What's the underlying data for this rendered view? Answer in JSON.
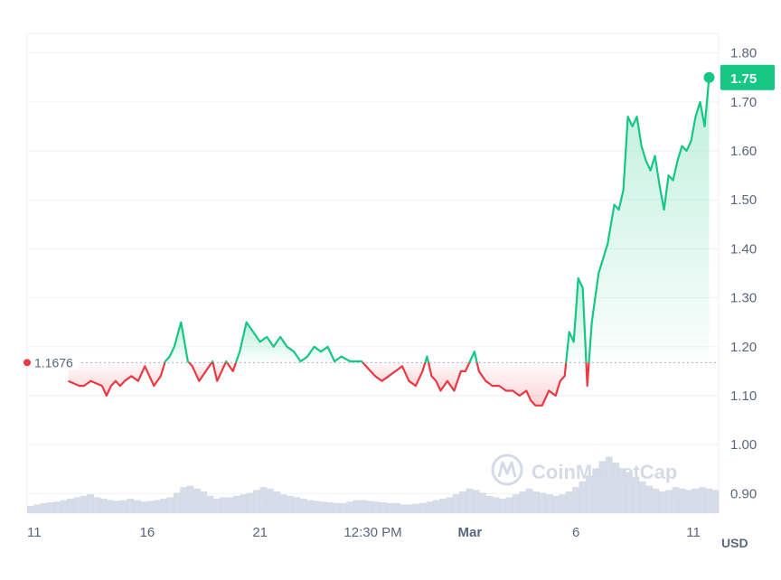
{
  "chart_data": {
    "type": "line",
    "currency": "USD",
    "reference_value": "1.1676",
    "current_value": "1.75",
    "ylim": [
      0.86,
      1.84
    ],
    "y_ticks": [
      "1.80",
      "1.70",
      "1.60",
      "1.50",
      "1.40",
      "1.30",
      "1.20",
      "1.10",
      "1.00",
      "0.90"
    ],
    "x_ticks": [
      {
        "label": "11",
        "bold": false
      },
      {
        "label": "16",
        "bold": false
      },
      {
        "label": "21",
        "bold": false
      },
      {
        "label": "12:30 PM",
        "bold": false
      },
      {
        "label": "Mar",
        "bold": true
      },
      {
        "label": "6",
        "bold": false
      },
      {
        "label": "11",
        "bold": false
      }
    ],
    "x_range": [
      0,
      30
    ],
    "x_tick_positions": [
      0,
      5,
      10,
      15,
      19.3,
      24,
      29.2
    ],
    "series": [
      {
        "x": [
          1.5,
          2,
          2.2,
          2.5,
          3,
          3.2,
          3.4,
          3.6,
          3.8,
          4,
          4.3,
          4.6,
          4.9,
          5.1,
          5.3,
          5.6,
          5.8,
          6,
          6.2,
          6.5,
          6.8,
          7,
          7.3,
          7.6,
          7.9,
          8.1,
          8.3,
          8.5,
          8.8,
          9.1,
          9.4,
          9.7,
          10,
          10.3,
          10.6,
          10.9,
          11.2,
          11.5,
          11.8,
          12.1,
          12.4,
          12.7,
          13,
          13.3,
          13.6,
          14,
          14.5,
          14.9,
          15.1,
          15.4,
          15.7,
          16,
          16.3,
          16.6,
          16.9,
          17.2,
          17.4,
          17.6,
          17.8,
          18,
          18.3,
          18.6,
          18.9,
          19.1,
          19.3,
          19.5,
          19.7,
          20,
          20.3,
          20.6,
          20.9,
          21.2,
          21.5,
          21.8,
          22,
          22.2,
          22.5,
          22.8,
          23.1,
          23.3,
          23.5,
          23.7,
          23.9,
          24.1,
          24.3,
          24.5,
          24.7,
          25,
          25.2,
          25.4,
          25.7,
          25.9,
          26.1,
          26.3,
          26.5,
          26.7,
          26.9,
          27.1,
          27.3,
          27.5,
          27.7,
          27.9,
          28.1,
          28.3,
          28.5,
          28.7,
          28.9,
          29.1,
          29.3,
          29.5,
          29.7
        ],
        "y": [
          1.13,
          1.12,
          1.12,
          1.13,
          1.12,
          1.1,
          1.12,
          1.13,
          1.12,
          1.13,
          1.14,
          1.13,
          1.16,
          1.14,
          1.12,
          1.14,
          1.17,
          1.18,
          1.2,
          1.25,
          1.17,
          1.16,
          1.13,
          1.15,
          1.17,
          1.13,
          1.15,
          1.17,
          1.15,
          1.19,
          1.25,
          1.23,
          1.21,
          1.22,
          1.2,
          1.22,
          1.2,
          1.19,
          1.17,
          1.18,
          1.2,
          1.19,
          1.2,
          1.17,
          1.18,
          1.17,
          1.17,
          1.15,
          1.14,
          1.13,
          1.14,
          1.15,
          1.16,
          1.13,
          1.12,
          1.15,
          1.18,
          1.14,
          1.13,
          1.11,
          1.13,
          1.11,
          1.15,
          1.15,
          1.17,
          1.19,
          1.15,
          1.13,
          1.12,
          1.12,
          1.11,
          1.11,
          1.1,
          1.11,
          1.09,
          1.08,
          1.08,
          1.11,
          1.1,
          1.13,
          1.14,
          1.23,
          1.21,
          1.34,
          1.32,
          1.12,
          1.25,
          1.35,
          1.38,
          1.41,
          1.49,
          1.48,
          1.52,
          1.67,
          1.65,
          1.67,
          1.61,
          1.58,
          1.56,
          1.59,
          1.53,
          1.48,
          1.55,
          1.54,
          1.58,
          1.61,
          1.6,
          1.62,
          1.67,
          1.7,
          1.65
        ],
        "last_point": {
          "x": 29.9,
          "y": 1.75
        }
      }
    ],
    "volume": [
      0.1,
      0.12,
      0.14,
      0.15,
      0.16,
      0.18,
      0.2,
      0.22,
      0.24,
      0.26,
      0.22,
      0.2,
      0.18,
      0.17,
      0.18,
      0.2,
      0.18,
      0.16,
      0.17,
      0.18,
      0.2,
      0.22,
      0.28,
      0.36,
      0.38,
      0.34,
      0.3,
      0.24,
      0.2,
      0.22,
      0.22,
      0.24,
      0.26,
      0.28,
      0.32,
      0.36,
      0.34,
      0.3,
      0.26,
      0.24,
      0.22,
      0.2,
      0.18,
      0.17,
      0.16,
      0.15,
      0.14,
      0.14,
      0.16,
      0.18,
      0.18,
      0.17,
      0.16,
      0.15,
      0.14,
      0.14,
      0.12,
      0.12,
      0.13,
      0.14,
      0.16,
      0.18,
      0.2,
      0.22,
      0.26,
      0.3,
      0.34,
      0.32,
      0.28,
      0.24,
      0.22,
      0.2,
      0.22,
      0.26,
      0.3,
      0.34,
      0.3,
      0.28,
      0.26,
      0.24,
      0.26,
      0.3,
      0.36,
      0.44,
      0.52,
      0.62,
      0.72,
      0.78,
      0.7,
      0.62,
      0.56,
      0.5,
      0.44,
      0.38,
      0.34,
      0.3,
      0.32,
      0.36,
      0.34,
      0.32,
      0.34,
      0.36,
      0.34,
      0.32
    ],
    "colors": {
      "up": "#16c784",
      "down": "#ea3943",
      "up_fill": "#16c784",
      "down_fill": "#ea3943",
      "volume": "#cfd6e4",
      "grid": "#eff2f5",
      "reference_line": "#a6b0c3",
      "axis_text": "#58667e"
    },
    "watermark": "CoinMarketCap"
  }
}
